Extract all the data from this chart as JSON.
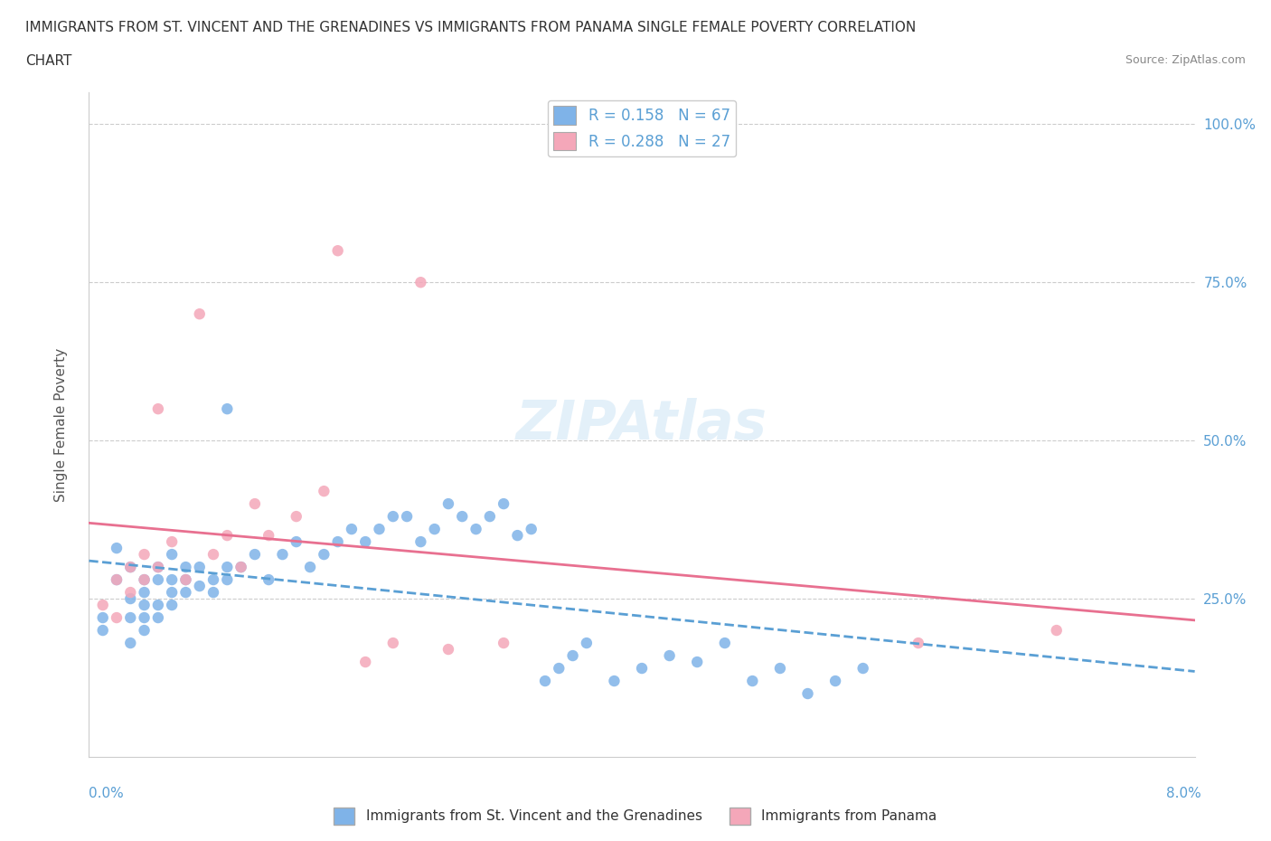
{
  "title_line1": "IMMIGRANTS FROM ST. VINCENT AND THE GRENADINES VS IMMIGRANTS FROM PANAMA SINGLE FEMALE POVERTY CORRELATION",
  "title_line2": "CHART",
  "source": "Source: ZipAtlas.com",
  "ylabel": "Single Female Poverty",
  "watermark": "ZIPAtlas",
  "blue_color": "#7fb3e8",
  "pink_color": "#f4a7b9",
  "blue_line_color": "#5a9fd4",
  "pink_line_color": "#e87090",
  "legend_label1": "R = 0.158   N = 67",
  "legend_label2": "R = 0.288   N = 27",
  "bottom_label1": "Immigrants from St. Vincent and the Grenadines",
  "bottom_label2": "Immigrants from Panama",
  "xlim": [
    0.0,
    0.08
  ],
  "ylim": [
    0.0,
    1.05
  ],
  "ytick_values": [
    0.25,
    0.5,
    0.75,
    1.0
  ],
  "ytick_labels": [
    "25.0%",
    "50.0%",
    "75.0%",
    "100.0%"
  ],
  "blue_scatter": [
    [
      0.001,
      0.2
    ],
    [
      0.001,
      0.22
    ],
    [
      0.002,
      0.33
    ],
    [
      0.002,
      0.28
    ],
    [
      0.003,
      0.25
    ],
    [
      0.003,
      0.22
    ],
    [
      0.003,
      0.3
    ],
    [
      0.003,
      0.18
    ],
    [
      0.004,
      0.26
    ],
    [
      0.004,
      0.24
    ],
    [
      0.004,
      0.22
    ],
    [
      0.004,
      0.28
    ],
    [
      0.004,
      0.2
    ],
    [
      0.005,
      0.28
    ],
    [
      0.005,
      0.24
    ],
    [
      0.005,
      0.3
    ],
    [
      0.005,
      0.22
    ],
    [
      0.006,
      0.28
    ],
    [
      0.006,
      0.26
    ],
    [
      0.006,
      0.24
    ],
    [
      0.006,
      0.32
    ],
    [
      0.007,
      0.26
    ],
    [
      0.007,
      0.3
    ],
    [
      0.007,
      0.28
    ],
    [
      0.008,
      0.3
    ],
    [
      0.008,
      0.27
    ],
    [
      0.009,
      0.28
    ],
    [
      0.009,
      0.26
    ],
    [
      0.01,
      0.55
    ],
    [
      0.01,
      0.3
    ],
    [
      0.01,
      0.28
    ],
    [
      0.011,
      0.3
    ],
    [
      0.012,
      0.32
    ],
    [
      0.013,
      0.28
    ],
    [
      0.014,
      0.32
    ],
    [
      0.015,
      0.34
    ],
    [
      0.016,
      0.3
    ],
    [
      0.017,
      0.32
    ],
    [
      0.018,
      0.34
    ],
    [
      0.019,
      0.36
    ],
    [
      0.02,
      0.34
    ],
    [
      0.021,
      0.36
    ],
    [
      0.022,
      0.38
    ],
    [
      0.023,
      0.38
    ],
    [
      0.024,
      0.34
    ],
    [
      0.025,
      0.36
    ],
    [
      0.026,
      0.4
    ],
    [
      0.027,
      0.38
    ],
    [
      0.028,
      0.36
    ],
    [
      0.029,
      0.38
    ],
    [
      0.03,
      0.4
    ],
    [
      0.031,
      0.35
    ],
    [
      0.032,
      0.36
    ],
    [
      0.033,
      0.12
    ],
    [
      0.034,
      0.14
    ],
    [
      0.035,
      0.16
    ],
    [
      0.036,
      0.18
    ],
    [
      0.038,
      0.12
    ],
    [
      0.04,
      0.14
    ],
    [
      0.042,
      0.16
    ],
    [
      0.044,
      0.15
    ],
    [
      0.046,
      0.18
    ],
    [
      0.048,
      0.12
    ],
    [
      0.05,
      0.14
    ],
    [
      0.052,
      0.1
    ],
    [
      0.054,
      0.12
    ],
    [
      0.056,
      0.14
    ]
  ],
  "pink_scatter": [
    [
      0.001,
      0.24
    ],
    [
      0.002,
      0.28
    ],
    [
      0.002,
      0.22
    ],
    [
      0.003,
      0.3
    ],
    [
      0.003,
      0.26
    ],
    [
      0.004,
      0.28
    ],
    [
      0.004,
      0.32
    ],
    [
      0.005,
      0.55
    ],
    [
      0.005,
      0.3
    ],
    [
      0.006,
      0.34
    ],
    [
      0.007,
      0.28
    ],
    [
      0.008,
      0.7
    ],
    [
      0.009,
      0.32
    ],
    [
      0.01,
      0.35
    ],
    [
      0.011,
      0.3
    ],
    [
      0.012,
      0.4
    ],
    [
      0.013,
      0.35
    ],
    [
      0.015,
      0.38
    ],
    [
      0.017,
      0.42
    ],
    [
      0.018,
      0.8
    ],
    [
      0.02,
      0.15
    ],
    [
      0.022,
      0.18
    ],
    [
      0.024,
      0.75
    ],
    [
      0.026,
      0.17
    ],
    [
      0.03,
      0.18
    ],
    [
      0.06,
      0.18
    ],
    [
      0.07,
      0.2
    ]
  ]
}
